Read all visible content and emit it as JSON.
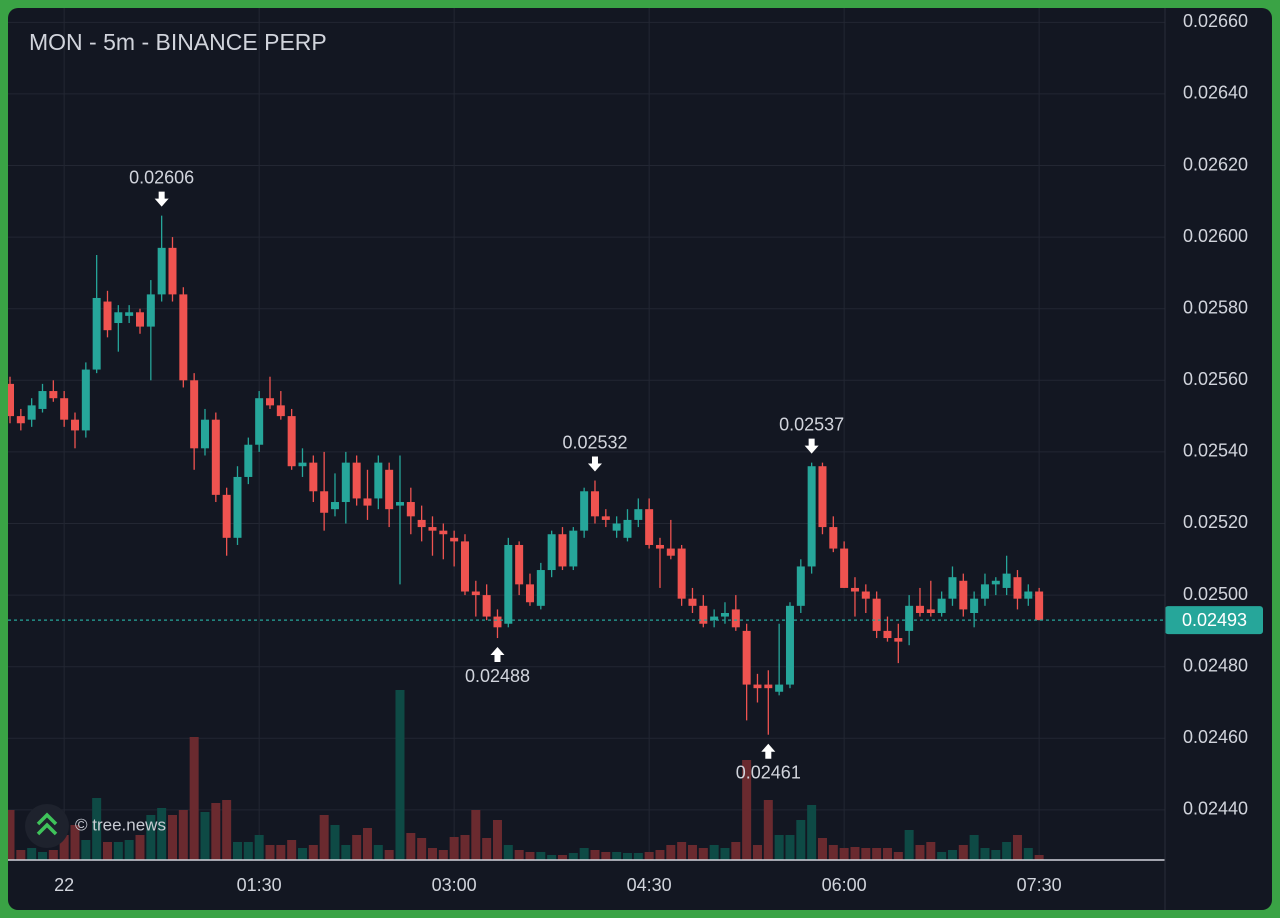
{
  "chart_data": {
    "type": "candlestick",
    "title": "MON - 5m - BINANCE PERP",
    "watermark": "© tree.news",
    "x": [
      "23:35",
      "23:40",
      "23:45",
      "23:50",
      "23:55",
      "00:00",
      "00:05",
      "00:10",
      "00:15",
      "00:20",
      "00:25",
      "00:30",
      "00:35",
      "00:40",
      "00:45",
      "00:50",
      "00:55",
      "01:00",
      "01:05",
      "01:10",
      "01:15",
      "01:20",
      "01:25",
      "01:30",
      "01:35",
      "01:40",
      "01:45",
      "01:50",
      "01:55",
      "02:00",
      "02:05",
      "02:10",
      "02:15",
      "02:20",
      "02:25",
      "02:30",
      "02:35",
      "02:40",
      "02:45",
      "02:50",
      "02:55",
      "03:00",
      "03:05",
      "03:10",
      "03:15",
      "03:20",
      "03:25",
      "03:30",
      "03:35",
      "03:40",
      "03:45",
      "03:50",
      "03:55",
      "04:00",
      "04:05",
      "04:10",
      "04:15",
      "04:20",
      "04:25",
      "04:30",
      "04:35",
      "04:40",
      "04:45",
      "04:50",
      "04:55",
      "05:00",
      "05:05",
      "05:10",
      "05:15",
      "05:20",
      "05:25",
      "05:30",
      "05:35",
      "05:40",
      "05:45",
      "05:50",
      "05:55",
      "06:00",
      "06:05",
      "06:10",
      "06:15",
      "06:20",
      "06:25",
      "06:30",
      "06:35",
      "06:40",
      "06:45",
      "06:50",
      "06:55",
      "07:00",
      "07:05",
      "07:10",
      "07:15",
      "07:20",
      "07:25",
      "07:30"
    ],
    "open": [
      0.02559,
      0.0255,
      0.02549,
      0.02552,
      0.02557,
      0.02555,
      0.02549,
      0.02546,
      0.02563,
      0.02582,
      0.02576,
      0.02578,
      0.02579,
      0.02575,
      0.02584,
      0.02597,
      0.02584,
      0.0256,
      0.02541,
      0.02549,
      0.02528,
      0.02516,
      0.02533,
      0.02542,
      0.02555,
      0.02553,
      0.0255,
      0.02536,
      0.02537,
      0.02529,
      0.02524,
      0.02526,
      0.02537,
      0.02527,
      0.02527,
      0.02535,
      0.02525,
      0.02526,
      0.02521,
      0.02519,
      0.02518,
      0.02516,
      0.02515,
      0.02501,
      0.025,
      0.02494,
      0.02492,
      0.02514,
      0.02503,
      0.02497,
      0.02507,
      0.02517,
      0.02508,
      0.02518,
      0.02529,
      0.02522,
      0.02518,
      0.02516,
      0.02521,
      0.02524,
      0.02514,
      0.02513,
      0.02513,
      0.02499,
      0.02497,
      0.02493,
      0.02494,
      0.02496,
      0.0249,
      0.02475,
      0.02475,
      0.02473,
      0.02475,
      0.02497,
      0.02508,
      0.02536,
      0.02519,
      0.02513,
      0.02502,
      0.02501,
      0.02499,
      0.0249,
      0.02488,
      0.0249,
      0.02497,
      0.02496,
      0.02495,
      0.02499,
      0.02504,
      0.02495,
      0.02499,
      0.02503,
      0.02502,
      0.02505,
      0.02499,
      0.02501
    ],
    "high": [
      0.02561,
      0.02552,
      0.02555,
      0.02559,
      0.0256,
      0.02557,
      0.02551,
      0.02565,
      0.02595,
      0.02585,
      0.02581,
      0.02581,
      0.0258,
      0.02588,
      0.02606,
      0.026,
      0.02586,
      0.02562,
      0.02552,
      0.02551,
      0.0253,
      0.02536,
      0.02544,
      0.02557,
      0.02561,
      0.02557,
      0.02552,
      0.02541,
      0.02539,
      0.0254,
      0.02534,
      0.0254,
      0.02539,
      0.02535,
      0.02539,
      0.02537,
      0.02539,
      0.0253,
      0.02525,
      0.02522,
      0.0252,
      0.02518,
      0.02517,
      0.02504,
      0.02503,
      0.02496,
      0.02516,
      0.02515,
      0.02506,
      0.02509,
      0.02518,
      0.02519,
      0.02519,
      0.0253,
      0.02532,
      0.02524,
      0.02522,
      0.02524,
      0.02527,
      0.02527,
      0.02516,
      0.02521,
      0.02514,
      0.02502,
      0.025,
      0.02496,
      0.02498,
      0.025,
      0.02492,
      0.02478,
      0.02479,
      0.02492,
      0.02498,
      0.0251,
      0.02537,
      0.02537,
      0.02522,
      0.02515,
      0.02505,
      0.02503,
      0.02501,
      0.02494,
      0.02492,
      0.025,
      0.02502,
      0.02504,
      0.02501,
      0.02508,
      0.02506,
      0.02501,
      0.02506,
      0.02505,
      0.02511,
      0.02507,
      0.02503,
      0.02502
    ],
    "low": [
      0.02548,
      0.02546,
      0.02547,
      0.02551,
      0.02554,
      0.02547,
      0.02541,
      0.02544,
      0.02562,
      0.02572,
      0.02568,
      0.02576,
      0.02573,
      0.0256,
      0.02582,
      0.02582,
      0.02558,
      0.02535,
      0.02539,
      0.02526,
      0.02511,
      0.02514,
      0.02531,
      0.0254,
      0.02552,
      0.02549,
      0.02535,
      0.02533,
      0.02526,
      0.02518,
      0.02522,
      0.0252,
      0.02525,
      0.02521,
      0.02524,
      0.02519,
      0.02503,
      0.02517,
      0.02515,
      0.02511,
      0.0251,
      0.02508,
      0.025,
      0.02494,
      0.02493,
      0.02488,
      0.02491,
      0.025,
      0.02497,
      0.02496,
      0.02505,
      0.02507,
      0.02507,
      0.02516,
      0.0252,
      0.02519,
      0.02516,
      0.02515,
      0.02519,
      0.02513,
      0.02502,
      0.0251,
      0.02497,
      0.02495,
      0.02491,
      0.02491,
      0.02492,
      0.0249,
      0.02465,
      0.0247,
      0.02461,
      0.02472,
      0.02474,
      0.02495,
      0.02506,
      0.02517,
      0.02512,
      0.02502,
      0.02494,
      0.02495,
      0.02488,
      0.02487,
      0.02481,
      0.02486,
      0.02494,
      0.02494,
      0.02494,
      0.02497,
      0.02494,
      0.02491,
      0.02497,
      0.025,
      0.025,
      0.02496,
      0.02497,
      0.02493
    ],
    "close": [
      0.0255,
      0.02548,
      0.02553,
      0.02557,
      0.02555,
      0.02549,
      0.02546,
      0.02563,
      0.02583,
      0.02574,
      0.02579,
      0.02579,
      0.02575,
      0.02584,
      0.02597,
      0.02584,
      0.0256,
      0.02541,
      0.02549,
      0.02528,
      0.02516,
      0.02533,
      0.02542,
      0.02555,
      0.02553,
      0.0255,
      0.02536,
      0.02537,
      0.02529,
      0.02523,
      0.02526,
      0.02537,
      0.02527,
      0.02525,
      0.02537,
      0.02524,
      0.02526,
      0.02522,
      0.02519,
      0.02518,
      0.02517,
      0.02515,
      0.02501,
      0.025,
      0.02494,
      0.02491,
      0.02514,
      0.02503,
      0.02498,
      0.02507,
      0.02517,
      0.02508,
      0.02518,
      0.02529,
      0.02522,
      0.02521,
      0.0252,
      0.02521,
      0.02524,
      0.02514,
      0.02513,
      0.02511,
      0.02499,
      0.02497,
      0.02492,
      0.02494,
      0.02495,
      0.02491,
      0.02475,
      0.02474,
      0.02474,
      0.02475,
      0.02497,
      0.02508,
      0.02536,
      0.02519,
      0.02513,
      0.02502,
      0.02501,
      0.02499,
      0.0249,
      0.02488,
      0.02487,
      0.02497,
      0.02495,
      0.02495,
      0.02499,
      0.02505,
      0.02496,
      0.02499,
      0.02503,
      0.02504,
      0.02506,
      0.02499,
      0.02501,
      0.02493
    ],
    "volume": [
      50,
      10,
      12,
      8,
      10,
      25,
      35,
      20,
      62,
      18,
      18,
      20,
      25,
      45,
      52,
      45,
      50,
      123,
      48,
      57,
      60,
      18,
      18,
      25,
      15,
      15,
      20,
      12,
      15,
      45,
      35,
      15,
      25,
      32,
      15,
      10,
      170,
      27,
      22,
      12,
      10,
      23,
      25,
      50,
      22,
      40,
      15,
      10,
      8,
      8,
      5,
      5,
      7,
      12,
      10,
      8,
      8,
      7,
      7,
      8,
      10,
      15,
      18,
      15,
      12,
      15,
      12,
      18,
      100,
      15,
      60,
      25,
      25,
      40,
      55,
      22,
      15,
      12,
      13,
      12,
      12,
      12,
      8,
      30,
      15,
      18,
      8,
      10,
      15,
      25,
      12,
      10,
      18,
      25,
      12,
      5
    ],
    "up_color": "#26a69a",
    "down_color": "#ef5350",
    "volume_up_color": "#0e4a45",
    "volume_down_color": "#6a2a2f",
    "ylim": [
      0.02426,
      0.02664
    ],
    "yticks": [
      {
        "value": 0.0266,
        "label": "0.02660"
      },
      {
        "value": 0.0264,
        "label": "0.02640"
      },
      {
        "value": 0.0262,
        "label": "0.02620"
      },
      {
        "value": 0.026,
        "label": "0.02600"
      },
      {
        "value": 0.0258,
        "label": "0.02580"
      },
      {
        "value": 0.0256,
        "label": "0.02560"
      },
      {
        "value": 0.0254,
        "label": "0.02540"
      },
      {
        "value": 0.0252,
        "label": "0.02520"
      },
      {
        "value": 0.025,
        "label": "0.02500"
      },
      {
        "value": 0.0248,
        "label": "0.02480"
      },
      {
        "value": 0.0246,
        "label": "0.02460"
      },
      {
        "value": 0.0244,
        "label": "0.02440"
      }
    ],
    "xticks": [
      {
        "value": "00:00",
        "label": "22"
      },
      "01:30",
      "03:00",
      "04:30",
      "06:00",
      "07:30"
    ],
    "grid": true,
    "last_price": 0.02493,
    "annotations": [
      {
        "x": "00:45",
        "value": 0.02606,
        "position": "above"
      },
      {
        "x": "03:20",
        "value": 0.02488,
        "position": "below"
      },
      {
        "x": "04:05",
        "value": 0.02532,
        "position": "above"
      },
      {
        "x": "05:45",
        "value": 0.02537,
        "position": "above"
      },
      {
        "x": "05:25",
        "value": 0.02461,
        "position": "below"
      }
    ]
  }
}
